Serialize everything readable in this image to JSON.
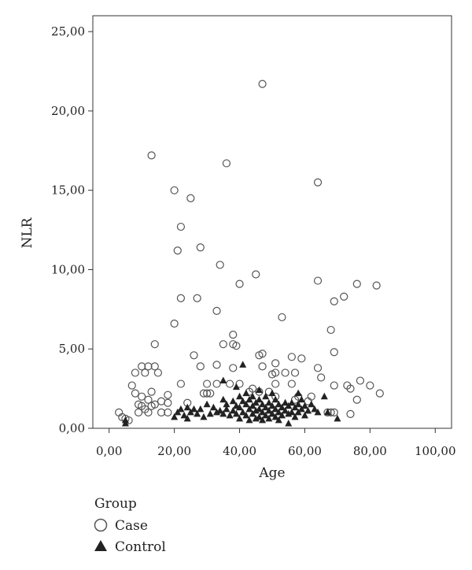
{
  "chart_data": {
    "type": "scatter",
    "title": "",
    "xlabel": "Age",
    "ylabel": "NLR",
    "xlim": [
      -5,
      105
    ],
    "ylim": [
      0,
      26
    ],
    "xticks": [
      0,
      20,
      40,
      60,
      80,
      100
    ],
    "xtick_labels": [
      "0,00",
      "20,00",
      "40,00",
      "60,00",
      "80,00",
      "100,00"
    ],
    "yticks": [
      0,
      5,
      10,
      15,
      20,
      25
    ],
    "ytick_labels": [
      "0,00",
      "5,00",
      "10,00",
      "15,00",
      "20,00",
      "25,00"
    ],
    "grid": false,
    "legend": {
      "title": "Group",
      "placement": "bottom-left",
      "entries": [
        "Case",
        "Control"
      ]
    },
    "series": [
      {
        "name": "Case",
        "marker": "open-circle",
        "color": "#555555",
        "points": [
          [
            3,
            1.0
          ],
          [
            4,
            0.7
          ],
          [
            5,
            0.6
          ],
          [
            6,
            0.5
          ],
          [
            7,
            2.7
          ],
          [
            8,
            2.2
          ],
          [
            8,
            3.5
          ],
          [
            9,
            1.5
          ],
          [
            9,
            1.0
          ],
          [
            10,
            3.9
          ],
          [
            10,
            2.0
          ],
          [
            10,
            1.4
          ],
          [
            11,
            3.5
          ],
          [
            11,
            1.2
          ],
          [
            12,
            3.9
          ],
          [
            12,
            1.8
          ],
          [
            12,
            1.0
          ],
          [
            13,
            2.3
          ],
          [
            13,
            1.4
          ],
          [
            13,
            17.2
          ],
          [
            14,
            3.9
          ],
          [
            14,
            5.3
          ],
          [
            14,
            1.5
          ],
          [
            15,
            3.5
          ],
          [
            16,
            1.0
          ],
          [
            16,
            1.7
          ],
          [
            18,
            2.1
          ],
          [
            18,
            1.6
          ],
          [
            18,
            1.0
          ],
          [
            20,
            6.6
          ],
          [
            20,
            15.0
          ],
          [
            21,
            11.2
          ],
          [
            22,
            12.7
          ],
          [
            22,
            8.2
          ],
          [
            22,
            2.8
          ],
          [
            24,
            1.6
          ],
          [
            25,
            14.5
          ],
          [
            26,
            4.6
          ],
          [
            27,
            8.2
          ],
          [
            28,
            11.4
          ],
          [
            28,
            3.9
          ],
          [
            29,
            2.2
          ],
          [
            30,
            2.8
          ],
          [
            30,
            2.2
          ],
          [
            31,
            2.2
          ],
          [
            33,
            7.4
          ],
          [
            33,
            4.0
          ],
          [
            33,
            2.8
          ],
          [
            34,
            10.3
          ],
          [
            35,
            5.3
          ],
          [
            36,
            16.7
          ],
          [
            37,
            2.8
          ],
          [
            38,
            5.9
          ],
          [
            38,
            5.3
          ],
          [
            38,
            3.8
          ],
          [
            39,
            5.2
          ],
          [
            40,
            9.1
          ],
          [
            40,
            2.8
          ],
          [
            43,
            2.3
          ],
          [
            44,
            2.5
          ],
          [
            45,
            9.7
          ],
          [
            46,
            4.6
          ],
          [
            46,
            2.3
          ],
          [
            47,
            21.7
          ],
          [
            47,
            4.7
          ],
          [
            47,
            3.9
          ],
          [
            49,
            2.3
          ],
          [
            50,
            3.4
          ],
          [
            51,
            4.1
          ],
          [
            51,
            3.5
          ],
          [
            51,
            2.8
          ],
          [
            51,
            2.0
          ],
          [
            53,
            7.0
          ],
          [
            54,
            3.5
          ],
          [
            56,
            4.5
          ],
          [
            56,
            2.8
          ],
          [
            57,
            3.5
          ],
          [
            57,
            1.8
          ],
          [
            58,
            2.0
          ],
          [
            59,
            4.4
          ],
          [
            61,
            1.7
          ],
          [
            62,
            2.0
          ],
          [
            64,
            15.5
          ],
          [
            64,
            9.3
          ],
          [
            64,
            3.8
          ],
          [
            65,
            3.2
          ],
          [
            67,
            1.0
          ],
          [
            68,
            6.2
          ],
          [
            68,
            1.0
          ],
          [
            69,
            8.0
          ],
          [
            69,
            4.8
          ],
          [
            69,
            2.7
          ],
          [
            69,
            1.0
          ],
          [
            72,
            8.3
          ],
          [
            73,
            2.7
          ],
          [
            74,
            2.5
          ],
          [
            74,
            0.9
          ],
          [
            76,
            9.1
          ],
          [
            76,
            1.8
          ],
          [
            77,
            3.0
          ],
          [
            80,
            2.7
          ],
          [
            82,
            9.0
          ],
          [
            83,
            2.2
          ]
        ]
      },
      {
        "name": "Control",
        "marker": "filled-triangle",
        "color": "#222222",
        "points": [
          [
            5,
            0.5
          ],
          [
            5,
            0.3
          ],
          [
            20,
            0.7
          ],
          [
            21,
            1.0
          ],
          [
            22,
            1.2
          ],
          [
            23,
            0.8
          ],
          [
            24,
            1.3
          ],
          [
            24,
            0.6
          ],
          [
            25,
            1.0
          ],
          [
            26,
            1.2
          ],
          [
            27,
            0.9
          ],
          [
            28,
            1.2
          ],
          [
            29,
            0.7
          ],
          [
            30,
            1.5
          ],
          [
            31,
            0.9
          ],
          [
            32,
            1.3
          ],
          [
            33,
            1.0
          ],
          [
            34,
            1.1
          ],
          [
            35,
            3.0
          ],
          [
            35,
            1.8
          ],
          [
            35,
            0.9
          ],
          [
            36,
            1.5
          ],
          [
            36,
            1.2
          ],
          [
            37,
            0.8
          ],
          [
            38,
            1.7
          ],
          [
            38,
            1.1
          ],
          [
            39,
            2.6
          ],
          [
            39,
            1.4
          ],
          [
            39,
            0.9
          ],
          [
            40,
            2.0
          ],
          [
            40,
            1.3
          ],
          [
            40,
            0.6
          ],
          [
            41,
            4.0
          ],
          [
            41,
            1.7
          ],
          [
            41,
            1.0
          ],
          [
            42,
            2.2
          ],
          [
            42,
            1.5
          ],
          [
            42,
            0.8
          ],
          [
            43,
            1.8
          ],
          [
            43,
            1.2
          ],
          [
            43,
            0.5
          ],
          [
            44,
            2.0
          ],
          [
            44,
            1.4
          ],
          [
            44,
            0.9
          ],
          [
            45,
            1.6
          ],
          [
            45,
            1.1
          ],
          [
            45,
            0.6
          ],
          [
            46,
            2.4
          ],
          [
            46,
            1.8
          ],
          [
            46,
            1.2
          ],
          [
            46,
            0.7
          ],
          [
            47,
            1.5
          ],
          [
            47,
            1.0
          ],
          [
            47,
            0.5
          ],
          [
            48,
            2.0
          ],
          [
            48,
            1.3
          ],
          [
            48,
            0.8
          ],
          [
            49,
            1.6
          ],
          [
            49,
            1.1
          ],
          [
            49,
            0.6
          ],
          [
            50,
            2.2
          ],
          [
            50,
            1.4
          ],
          [
            50,
            0.9
          ],
          [
            51,
            1.8
          ],
          [
            51,
            1.2
          ],
          [
            51,
            0.7
          ],
          [
            52,
            1.5
          ],
          [
            52,
            1.0
          ],
          [
            52,
            0.5
          ],
          [
            53,
            1.3
          ],
          [
            53,
            0.8
          ],
          [
            54,
            1.6
          ],
          [
            54,
            1.1
          ],
          [
            55,
            1.4
          ],
          [
            55,
            0.9
          ],
          [
            55,
            0.3
          ],
          [
            56,
            1.6
          ],
          [
            56,
            1.0
          ],
          [
            57,
            1.3
          ],
          [
            57,
            0.7
          ],
          [
            58,
            2.2
          ],
          [
            58,
            1.5
          ],
          [
            58,
            1.0
          ],
          [
            59,
            1.8
          ],
          [
            59,
            1.2
          ],
          [
            60,
            1.4
          ],
          [
            60,
            0.8
          ],
          [
            61,
            1.1
          ],
          [
            62,
            1.5
          ],
          [
            63,
            1.2
          ],
          [
            64,
            1.0
          ],
          [
            66,
            2.0
          ],
          [
            67,
            1.0
          ],
          [
            70,
            0.6
          ]
        ]
      }
    ]
  }
}
